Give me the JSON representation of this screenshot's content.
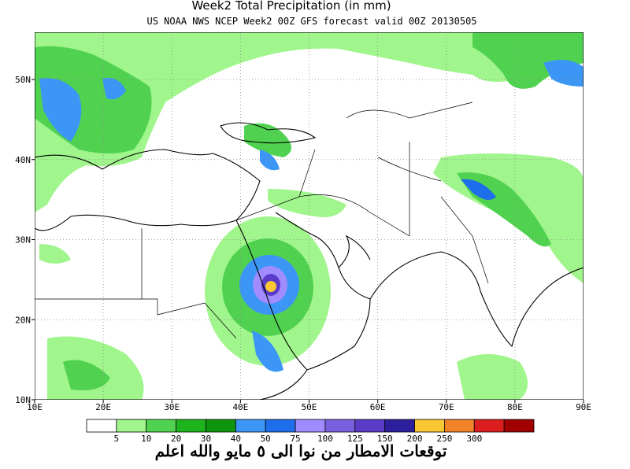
{
  "title": "Week2 Total Precipitation (in mm)",
  "subtitle": "US NOAA NWS NCEP Week2 00Z GFS forecast valid 00Z 20130505",
  "map": {
    "lon_labels": [
      "10E",
      "20E",
      "30E",
      "40E",
      "50E",
      "60E",
      "70E",
      "80E",
      "90E"
    ],
    "lat_labels": [
      "10N",
      "20N",
      "30N",
      "40N",
      "50N"
    ]
  },
  "colorbar": {
    "labels": [
      "5",
      "10",
      "20",
      "30",
      "40",
      "50",
      "75",
      "100",
      "125",
      "150",
      "200",
      "250",
      "300"
    ],
    "colors": [
      "#ffffff",
      "#a0f58c",
      "#50d250",
      "#1eb41e",
      "#0f960f",
      "#3c96f5",
      "#1e6eeb",
      "#a08cff",
      "#7860dc",
      "#5a3cc8",
      "#2d1e9b",
      "#fac832",
      "#f08228",
      "#dc1e1e",
      "#a00000"
    ]
  },
  "caption": "توقعات الامطار من نوا الى ٥ مايو والله اعلم"
}
